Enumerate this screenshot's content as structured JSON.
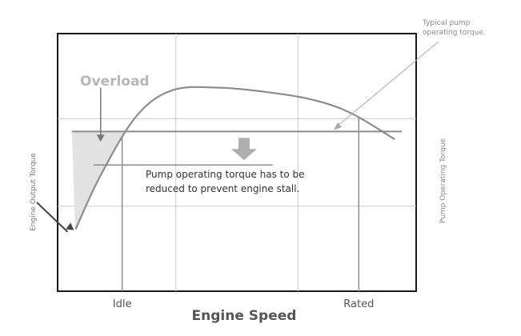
{
  "chart_data": {
    "type": "line",
    "xlabel": "Engine Speed",
    "ylabel": "Engine Output Torque",
    "y2label": "Pump Operating Torque",
    "x_ticks": [
      {
        "label": "Idle",
        "x": 0.18
      },
      {
        "label": "Rated",
        "x": 0.84
      }
    ],
    "grid": true,
    "series": [
      {
        "name": "Engine Output Torque",
        "points": [
          [
            0.05,
            0.24
          ],
          [
            0.12,
            0.45
          ],
          [
            0.22,
            0.68
          ],
          [
            0.32,
            0.78
          ],
          [
            0.45,
            0.79
          ],
          [
            0.6,
            0.77
          ],
          [
            0.72,
            0.74
          ],
          [
            0.82,
            0.69
          ],
          [
            0.94,
            0.59
          ]
        ],
        "color": "#8c8c8c"
      }
    ],
    "lines": [
      {
        "name": "Typical pump operating torque",
        "y": 0.62,
        "x_range": [
          0.04,
          0.96
        ]
      },
      {
        "name": "Reduced pump operating torque",
        "y": 0.49,
        "x_range": [
          0.1,
          0.6
        ]
      }
    ],
    "overload_region": {
      "x_range": [
        0.04,
        0.28
      ],
      "upper_y": 0.62,
      "color": "#e2e2e2"
    },
    "annotations": {
      "overload": "Overload",
      "typical_pump_torque": [
        "Typical pump",
        "operating torque."
      ],
      "reduce_note": [
        "Pump operating torque has to be",
        "reduced to prevent engine stall."
      ]
    },
    "colors": {
      "frame": "#1a1a1a",
      "grid": "#cccccc",
      "curve": "#8c8c8c",
      "annotation_text": "#9a9a9a",
      "label_text": "#555555",
      "dark_text": "#333333",
      "big_arrow": "#b0b0b0"
    }
  }
}
